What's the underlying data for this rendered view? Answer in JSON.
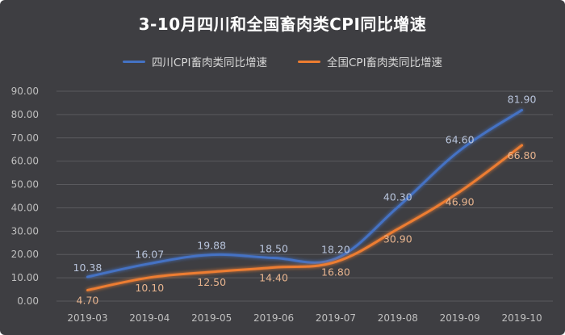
{
  "chart_data": {
    "type": "line",
    "title": "3-10月四川和全国畜肉类CPI同比增速",
    "categories": [
      "2019-03",
      "2019-04",
      "2019-05",
      "2019-06",
      "2019-07",
      "2019-08",
      "2019-09",
      "2019-10"
    ],
    "ylim": [
      0,
      90
    ],
    "yticks": [
      "0.00",
      "10.00",
      "20.00",
      "30.00",
      "40.00",
      "50.00",
      "60.00",
      "70.00",
      "80.00",
      "90.00"
    ],
    "grid": true,
    "legend_position": "top",
    "series": [
      {
        "name": "四川CPI畜肉类同比增速",
        "color": "#4472c4",
        "values": [
          10.38,
          16.07,
          19.88,
          18.5,
          18.2,
          40.3,
          64.6,
          81.9
        ],
        "labels": [
          "10.38",
          "16.07",
          "19.88",
          "18.50",
          "18.20",
          "40.30",
          "64.60",
          "81.90"
        ]
      },
      {
        "name": "全国CPI畜肉类同比增速",
        "color": "#ed7d31",
        "values": [
          4.7,
          10.1,
          12.5,
          14.4,
          16.8,
          30.9,
          46.9,
          66.8
        ],
        "labels": [
          "4.70",
          "10.10",
          "12.50",
          "14.40",
          "16.80",
          "30.90",
          "46.90",
          "66.80"
        ]
      }
    ]
  }
}
